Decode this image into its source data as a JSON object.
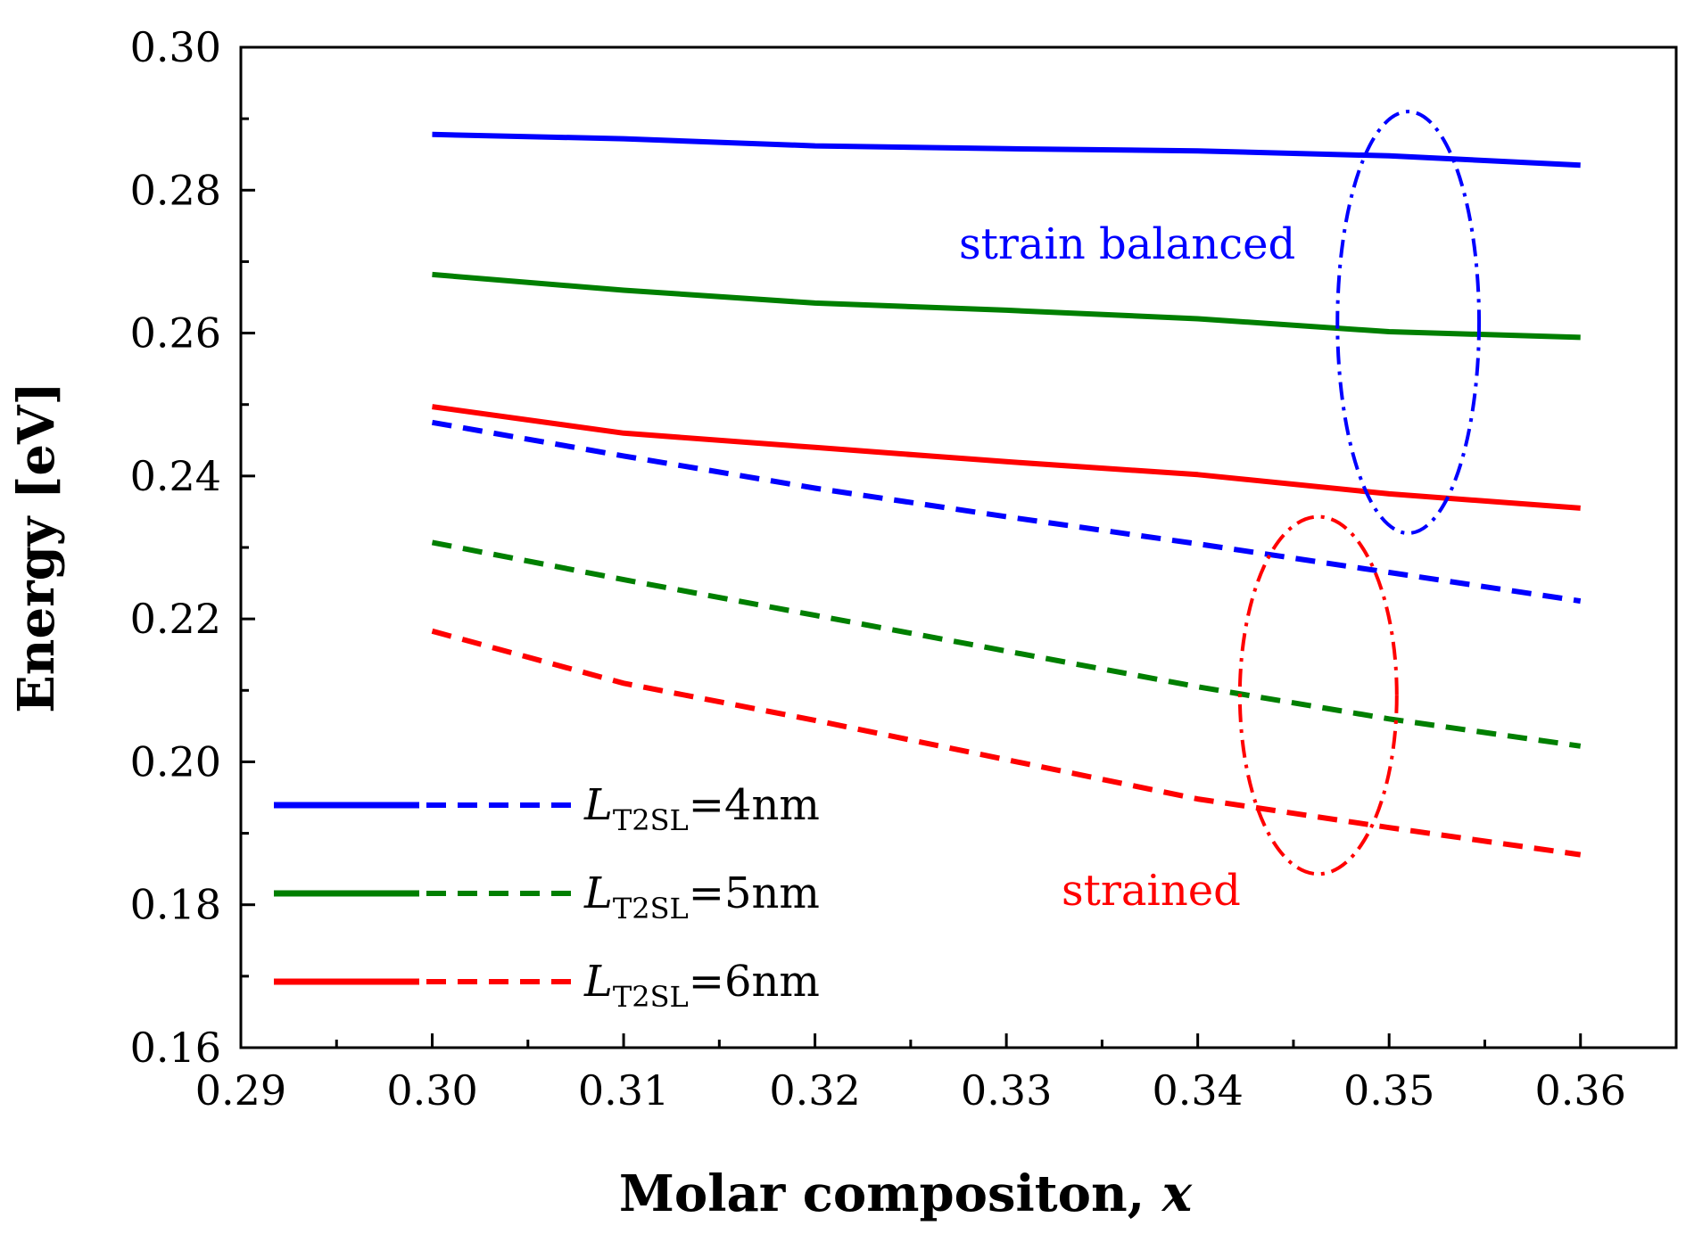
{
  "chart_data": {
    "type": "line",
    "title": "",
    "xlabel_main": "Molar compositon, ",
    "xlabel_var": "x",
    "ylabel": "Energy [eV]",
    "xlim": [
      0.29,
      0.365
    ],
    "ylim": [
      0.16,
      0.3
    ],
    "xticks": [
      0.29,
      0.3,
      0.31,
      0.32,
      0.33,
      0.34,
      0.35,
      0.36
    ],
    "xtick_labels": [
      "0.29",
      "0.30",
      "0.31",
      "0.32",
      "0.33",
      "0.34",
      "0.35",
      "0.36"
    ],
    "yticks": [
      0.16,
      0.18,
      0.2,
      0.22,
      0.24,
      0.26,
      0.28,
      0.3
    ],
    "ytick_labels": [
      "0.16",
      "0.18",
      "0.20",
      "0.22",
      "0.24",
      "0.26",
      "0.28",
      "0.30"
    ],
    "x": [
      0.3,
      0.31,
      0.32,
      0.33,
      0.34,
      0.35,
      0.36
    ],
    "series": [
      {
        "name": "strain balanced, L_T2SL=4nm",
        "color": "#0000ff",
        "style": "solid",
        "values": [
          0.2878,
          0.2872,
          0.2862,
          0.2858,
          0.2855,
          0.2848,
          0.2835
        ]
      },
      {
        "name": "strain balanced, L_T2SL=5nm",
        "color": "#007f00",
        "style": "solid",
        "values": [
          0.2682,
          0.266,
          0.2642,
          0.2632,
          0.262,
          0.2602,
          0.2594
        ]
      },
      {
        "name": "strain balanced, L_T2SL=6nm",
        "color": "#ff0000",
        "style": "solid",
        "values": [
          0.2497,
          0.246,
          0.244,
          0.242,
          0.2402,
          0.2375,
          0.2355
        ]
      },
      {
        "name": "strained, L_T2SL=4nm",
        "color": "#0000ff",
        "style": "dashed",
        "values": [
          0.2475,
          0.2428,
          0.2383,
          0.2343,
          0.2305,
          0.2265,
          0.2225
        ]
      },
      {
        "name": "strained, L_T2SL=5nm",
        "color": "#007f00",
        "style": "dashed",
        "values": [
          0.2307,
          0.2255,
          0.2205,
          0.2155,
          0.2105,
          0.206,
          0.2022
        ]
      },
      {
        "name": "strained, L_T2SL=6nm",
        "color": "#ff0000",
        "style": "dashed",
        "values": [
          0.2183,
          0.211,
          0.2058,
          0.2003,
          0.1948,
          0.1908,
          0.187
        ]
      }
    ],
    "annotations": [
      {
        "text": "strain balanced",
        "color": "#0000ff"
      },
      {
        "text": "strained",
        "color": "#ff0000"
      }
    ],
    "ellipses": [
      {
        "name": "strain-balanced-ellipse",
        "cx": 0.351,
        "cy": 0.2615,
        "rx": 0.0037,
        "ry": 0.0295,
        "color": "#0000ff"
      },
      {
        "name": "strained-ellipse",
        "cx": 0.3463,
        "cy": 0.2093,
        "rx": 0.0041,
        "ry": 0.025,
        "color": "#ff0000"
      }
    ],
    "legend": {
      "placement": "bottom-left",
      "entries": [
        {
          "var": "L",
          "sub": "T2SL",
          "suffix": "=4nm",
          "color": "#0000ff"
        },
        {
          "var": "L",
          "sub": "T2SL",
          "suffix": "=5nm",
          "color": "#007f00"
        },
        {
          "var": "L",
          "sub": "T2SL",
          "suffix": "=6nm",
          "color": "#ff0000"
        }
      ]
    }
  }
}
